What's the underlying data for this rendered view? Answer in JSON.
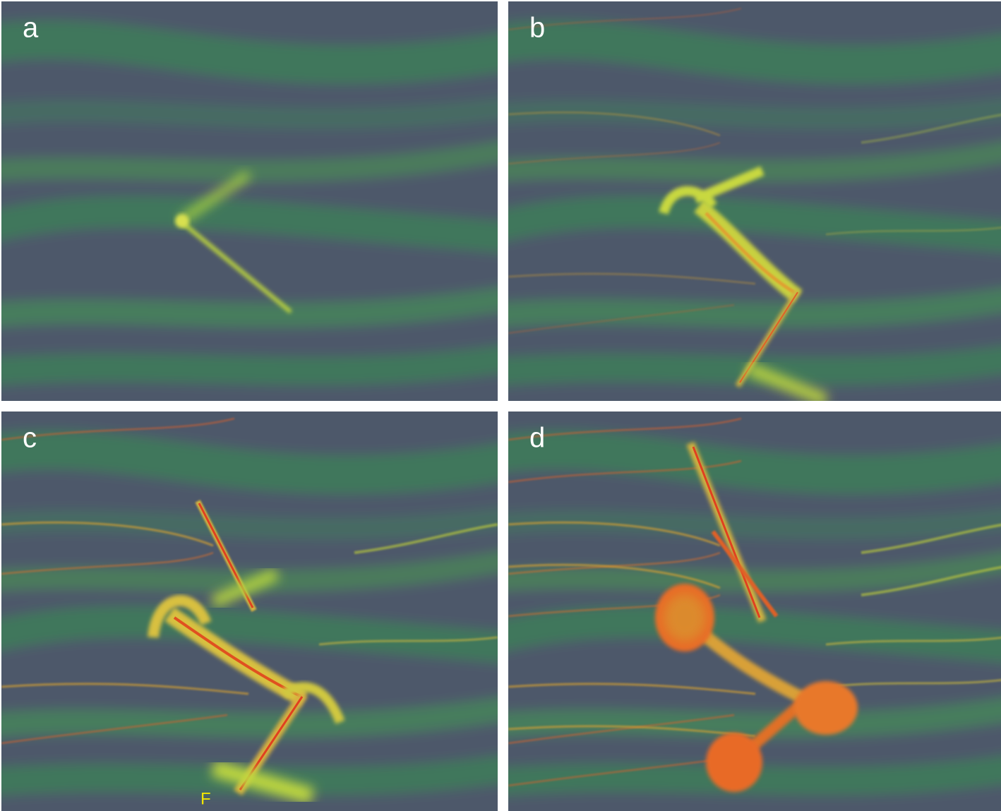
{
  "panels": [
    {
      "label": "a"
    },
    {
      "label": "b"
    },
    {
      "label": "c"
    },
    {
      "label": "d"
    }
  ],
  "annotations": [
    {
      "text": "F"
    }
  ]
}
